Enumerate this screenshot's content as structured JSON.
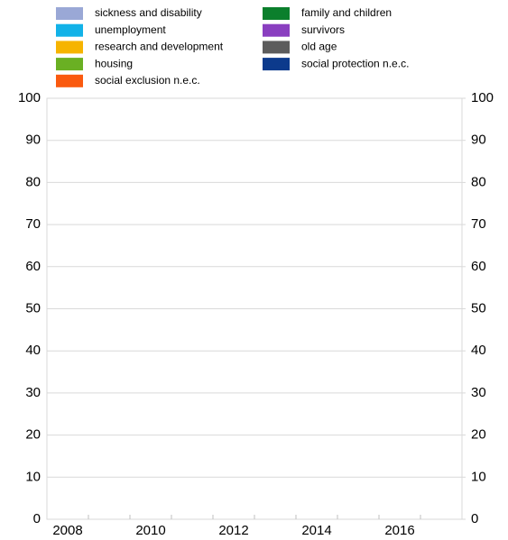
{
  "chart_data": {
    "type": "bar",
    "stacked": true,
    "categories": [
      "2008",
      null,
      "2010",
      null,
      "2012",
      null,
      "2014",
      null,
      "2016",
      null
    ],
    "series": [
      {
        "name": "sickness and disability",
        "color": "#9aa8d6",
        "values": [
          null,
          null,
          null,
          null,
          null,
          null,
          null,
          null,
          null,
          null
        ]
      },
      {
        "name": "unemployment",
        "color": "#12b2e8",
        "values": [
          null,
          null,
          null,
          null,
          null,
          null,
          null,
          null,
          null,
          null
        ]
      },
      {
        "name": "research and development",
        "color": "#f6b400",
        "values": [
          null,
          null,
          null,
          null,
          null,
          null,
          null,
          null,
          null,
          null
        ]
      },
      {
        "name": "housing",
        "color": "#6ab023",
        "values": [
          null,
          null,
          null,
          null,
          null,
          null,
          null,
          null,
          null,
          null
        ]
      },
      {
        "name": "social exclusion n.e.c.",
        "color": "#fa5a0f",
        "values": [
          null,
          null,
          null,
          null,
          null,
          null,
          null,
          null,
          null,
          null
        ]
      },
      {
        "name": "family and children",
        "color": "#0b7f2c",
        "values": [
          null,
          null,
          null,
          null,
          null,
          null,
          null,
          null,
          null,
          null
        ]
      },
      {
        "name": "survivors",
        "color": "#8a3fc0",
        "values": [
          null,
          null,
          null,
          null,
          null,
          null,
          null,
          null,
          null,
          null
        ]
      },
      {
        "name": "old age",
        "color": "#5c5c5c",
        "values": [
          null,
          null,
          null,
          null,
          null,
          null,
          null,
          null,
          null,
          null
        ]
      },
      {
        "name": "social protection n.e.c.",
        "color": "#0c3a8c",
        "values": [
          null,
          null,
          null,
          null,
          null,
          null,
          null,
          null,
          null,
          null
        ]
      }
    ],
    "ylim": [
      0,
      100
    ],
    "yticks": [
      0,
      10,
      20,
      30,
      40,
      50,
      60,
      70,
      80,
      90,
      100
    ],
    "y2lim": [
      0,
      100
    ],
    "y2ticks": [
      0,
      10,
      20,
      30,
      40,
      50,
      60,
      70,
      80,
      90,
      100
    ],
    "grid": true
  }
}
